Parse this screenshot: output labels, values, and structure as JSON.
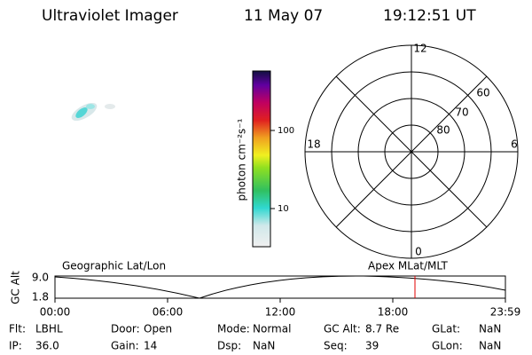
{
  "header": {
    "title": "Ultraviolet Imager",
    "date": "11 May 07",
    "time": "19:12:51 UT"
  },
  "colorbar": {
    "label": "photon cm⁻²s⁻¹",
    "ticks": [
      "100",
      "10"
    ]
  },
  "polar": {
    "top": "12",
    "left": "18",
    "right": "6",
    "bottom": "0",
    "rings": [
      "60",
      "70",
      "80"
    ]
  },
  "timeline": {
    "ylabel": "GC Alt",
    "yticks": [
      "9.0",
      "1.8"
    ],
    "left_label": "Geographic Lat/Lon",
    "right_label": "Apex MLat/MLT",
    "xticks": [
      "00:00",
      "06:00",
      "12:00",
      "18:00",
      "23:59"
    ]
  },
  "info": [
    [
      [
        "Flt:",
        "LBHL"
      ],
      [
        "Door:",
        "Open"
      ],
      [
        "Mode:",
        "Normal"
      ],
      [
        "GC Alt:",
        "8.7 Re"
      ],
      [
        "GLat:",
        "NaN"
      ]
    ],
    [
      [
        "IP:",
        "36.0"
      ],
      [
        "Gain:",
        "14"
      ],
      [
        "Dsp:",
        "NaN"
      ],
      [
        "Seq:",
        "39"
      ],
      [
        "GLon:",
        "NaN"
      ]
    ]
  ]
}
